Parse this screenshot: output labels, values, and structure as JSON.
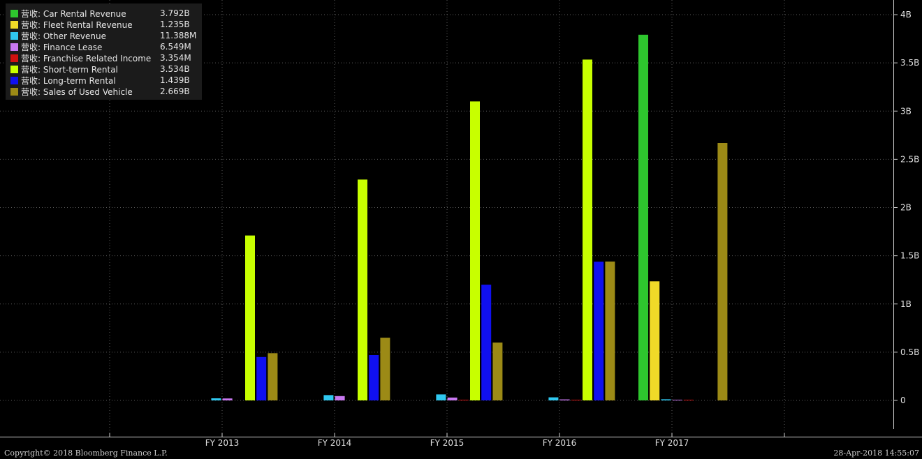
{
  "legend": {
    "items": [
      {
        "name": "营收: Car Rental Revenue",
        "value": "3.792B",
        "color": "#2ec62e"
      },
      {
        "name": "营收: Fleet Rental Revenue",
        "value": "1.235B",
        "color": "#f0da28"
      },
      {
        "name": "营收: Other Revenue",
        "value": "11.388M",
        "color": "#30c8f0"
      },
      {
        "name": "营收: Finance Lease",
        "value": "6.549M",
        "color": "#c878f0"
      },
      {
        "name": "营收: Franchise Related Income",
        "value": "3.354M",
        "color": "#d01010"
      },
      {
        "name": "营收: Short-term Rental",
        "value": "3.534B",
        "color": "#c8ff00"
      },
      {
        "name": "营收: Long-term Rental",
        "value": "1.439B",
        "color": "#1010f0"
      },
      {
        "name": "营收: Sales of Used Vehicle",
        "value": "2.669B",
        "color": "#9c8a16"
      }
    ]
  },
  "chart_data": {
    "type": "bar",
    "categories": [
      "FY 2013",
      "FY 2014",
      "FY 2015",
      "FY 2016",
      "FY 2017"
    ],
    "ylim": [
      -0.35,
      4.1
    ],
    "y_ticks": [
      0,
      0.5,
      1,
      1.5,
      2,
      2.5,
      3,
      3.5,
      4
    ],
    "y_tick_labels": [
      "0",
      "0.5B",
      "1B",
      "1.5B",
      "2B",
      "2.5B",
      "3B",
      "3.5B",
      "4B"
    ],
    "grid": true,
    "legend_position": "top-left",
    "series": [
      {
        "name": "营收: Car Rental Revenue",
        "color": "#2ec62e",
        "values": [
          0,
          0,
          0,
          0,
          3.792
        ]
      },
      {
        "name": "营收: Fleet Rental Revenue",
        "color": "#f0da28",
        "values": [
          0,
          0,
          0,
          0,
          1.235
        ]
      },
      {
        "name": "营收: Other Revenue",
        "color": "#30c8f0",
        "values": [
          0.022,
          0.055,
          0.062,
          0.032,
          0.011388
        ]
      },
      {
        "name": "营收: Finance Lease",
        "color": "#c878f0",
        "values": [
          0.02,
          0.045,
          0.03,
          0.01,
          0.006549
        ]
      },
      {
        "name": "营收: Franchise Related Income",
        "color": "#d01010",
        "values": [
          0,
          0,
          0.004,
          0.004,
          0.003354
        ]
      },
      {
        "name": "营收: Short-term Rental",
        "color": "#c8ff00",
        "values": [
          1.71,
          2.29,
          3.1,
          3.534,
          0
        ]
      },
      {
        "name": "营收: Long-term Rental",
        "color": "#1010f0",
        "values": [
          0.45,
          0.47,
          1.2,
          1.439,
          0
        ]
      },
      {
        "name": "营收: Sales of Used Vehicle",
        "color": "#9c8a16",
        "values": [
          0.49,
          0.65,
          0.6,
          1.44,
          2.669
        ]
      }
    ]
  },
  "footer": {
    "copyright": "Copyright© 2018 Bloomberg Finance L.P.",
    "timestamp": "28-Apr-2018 14:55:07"
  }
}
